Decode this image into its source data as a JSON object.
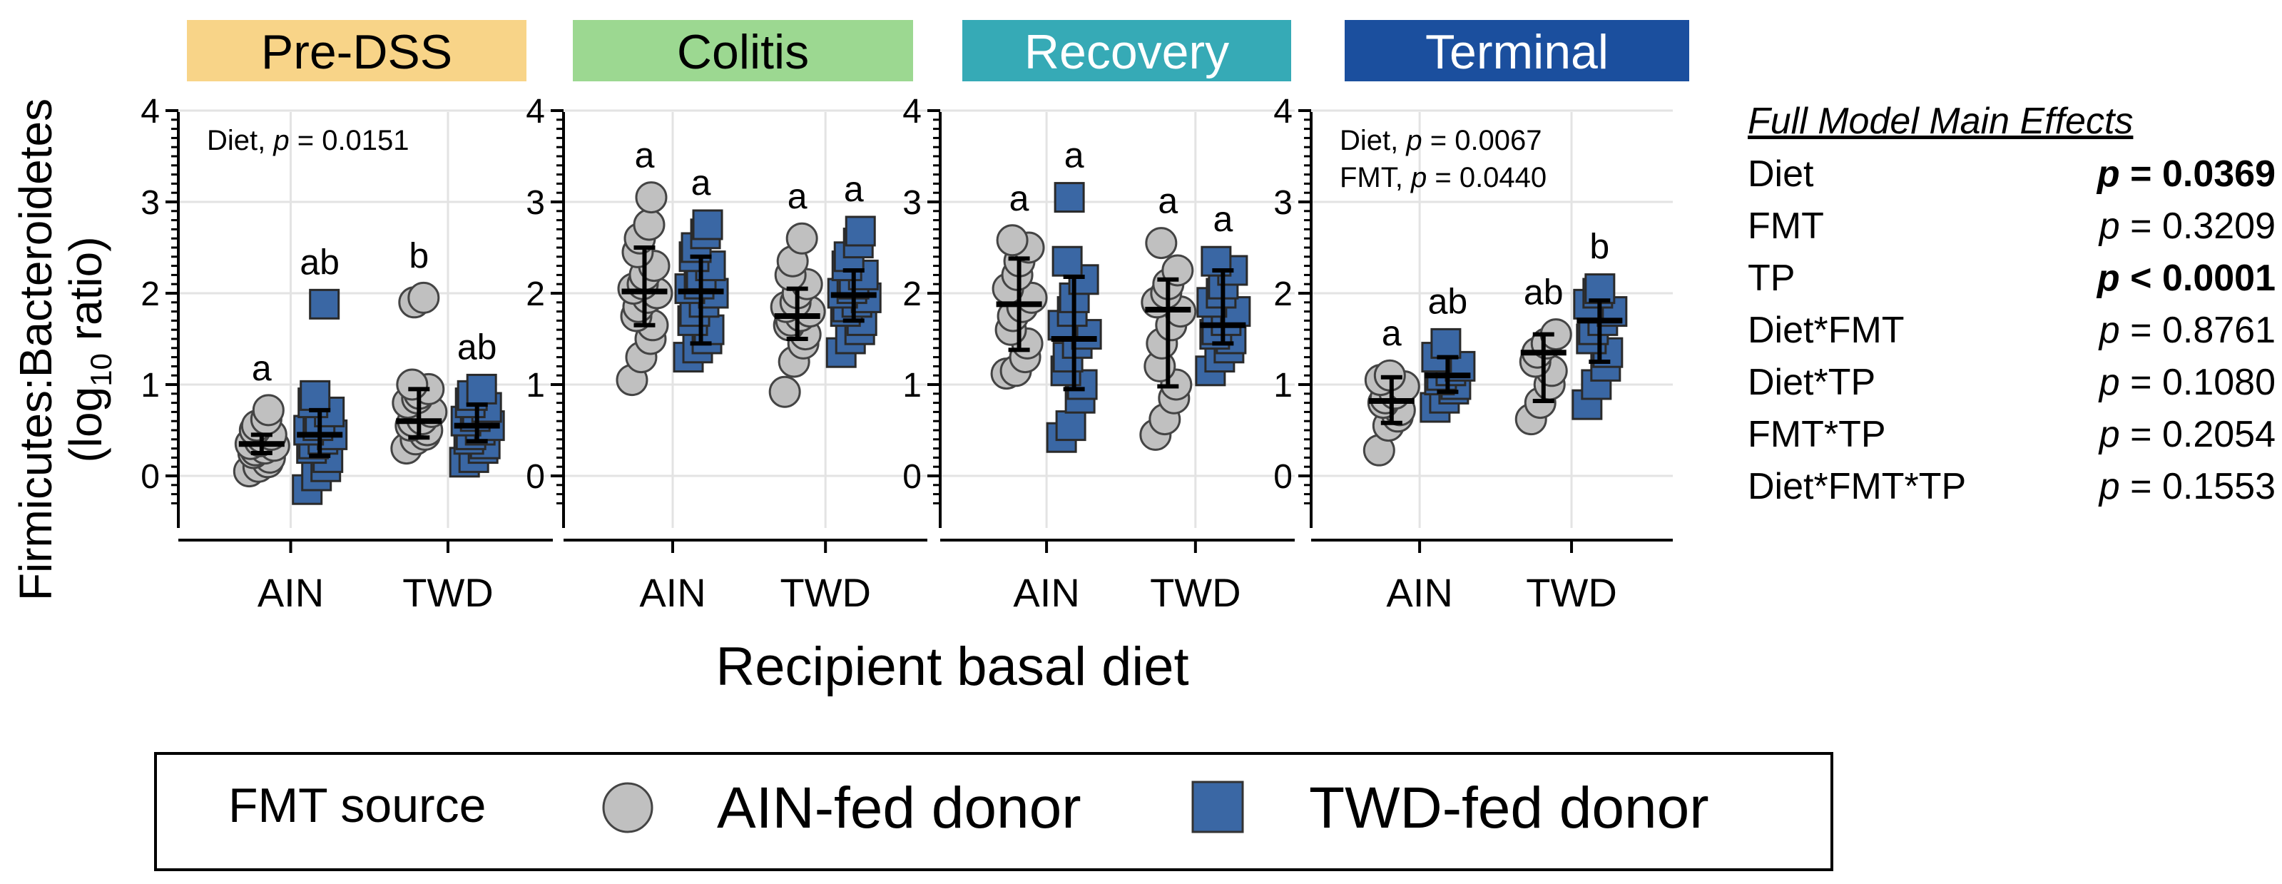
{
  "colors": {
    "ain_fill": "#c0c0c0",
    "twd_fill": "#3a67a4",
    "edge": "#444444",
    "grid": "#e3e3e3",
    "panel_bg": {
      "Pre-DSS": "#f8d488",
      "Colitis": "#9cd891",
      "Recovery": "#36aab6",
      "Terminal": "#1b4f9e"
    },
    "panel_text": {
      "Pre-DSS": "#000000",
      "Colitis": "#000000",
      "Recovery": "#ffffff",
      "Terminal": "#ffffff"
    }
  },
  "chart_data": {
    "type": "scatter",
    "ylabel_line1": "Firmicutes:Bacteroidetes",
    "ylabel_line2_pre": "(log",
    "ylabel_line2_sub": "10",
    "ylabel_line2_post": " ratio)",
    "xlabel": "Recipient basal diet",
    "ylim": [
      -0.35,
      4
    ],
    "yticks": [
      "0",
      "1",
      "2",
      "3",
      "4"
    ],
    "categories": [
      "AIN",
      "TWD"
    ],
    "legend": {
      "title": "FMT source",
      "ain_label": "AIN-fed donor",
      "twd_label": "TWD-fed donor"
    },
    "panels": [
      {
        "name": "Pre-DSS",
        "annotations": [
          {
            "label": "Diet",
            "p": "0.0151"
          }
        ],
        "groups": [
          {
            "diet": "AIN",
            "source": "AIN",
            "letter": "a",
            "median": 0.35,
            "lower": 0.25,
            "upper": 0.45,
            "points": [
              0.05,
              0.1,
              0.15,
              0.2,
              0.25,
              0.28,
              0.3,
              0.33,
              0.35,
              0.38,
              0.42,
              0.45,
              0.5,
              0.55,
              0.62,
              0.72
            ]
          },
          {
            "diet": "AIN",
            "source": "TWD",
            "letter": "ab",
            "median": 0.45,
            "lower": 0.22,
            "upper": 0.72,
            "points": [
              -0.15,
              0.0,
              0.1,
              0.2,
              0.3,
              0.35,
              0.4,
              0.45,
              0.5,
              0.55,
              0.62,
              0.7,
              0.8,
              0.88,
              1.88
            ]
          },
          {
            "diet": "TWD",
            "source": "AIN",
            "letter": "b",
            "median": 0.6,
            "lower": 0.42,
            "upper": 0.95,
            "points": [
              0.3,
              0.4,
              0.45,
              0.5,
              0.55,
              0.6,
              0.62,
              0.7,
              0.8,
              0.85,
              0.9,
              0.95,
              1.0,
              1.9,
              1.95
            ]
          },
          {
            "diet": "TWD",
            "source": "TWD",
            "letter": "ab",
            "median": 0.55,
            "lower": 0.38,
            "upper": 0.78,
            "points": [
              0.15,
              0.2,
              0.3,
              0.35,
              0.4,
              0.45,
              0.5,
              0.55,
              0.6,
              0.65,
              0.7,
              0.75,
              0.8,
              0.88,
              0.95
            ]
          }
        ]
      },
      {
        "name": "Colitis",
        "annotations": [],
        "groups": [
          {
            "diet": "AIN",
            "source": "AIN",
            "letter": "a",
            "median": 2.02,
            "lower": 1.65,
            "upper": 2.5,
            "points": [
              1.05,
              1.3,
              1.5,
              1.65,
              1.75,
              1.85,
              1.95,
              2.0,
              2.05,
              2.1,
              2.2,
              2.3,
              2.45,
              2.6,
              2.75,
              3.05
            ]
          },
          {
            "diet": "AIN",
            "source": "TWD",
            "letter": "a",
            "median": 2.02,
            "lower": 1.45,
            "upper": 2.4,
            "points": [
              1.3,
              1.4,
              1.5,
              1.6,
              1.7,
              1.8,
              1.9,
              2.0,
              2.05,
              2.1,
              2.2,
              2.3,
              2.4,
              2.5,
              2.65,
              2.75
            ]
          },
          {
            "diet": "TWD",
            "source": "AIN",
            "letter": "a",
            "median": 1.75,
            "lower": 1.5,
            "upper": 2.05,
            "points": [
              0.92,
              1.25,
              1.45,
              1.55,
              1.65,
              1.7,
              1.75,
              1.8,
              1.85,
              1.9,
              2.0,
              2.1,
              2.2,
              2.35,
              2.6
            ]
          },
          {
            "diet": "TWD",
            "source": "TWD",
            "letter": "a",
            "median": 1.98,
            "lower": 1.7,
            "upper": 2.25,
            "points": [
              1.35,
              1.5,
              1.6,
              1.7,
              1.8,
              1.85,
              1.9,
              1.95,
              2.0,
              2.05,
              2.1,
              2.2,
              2.3,
              2.4,
              2.55,
              2.68
            ]
          }
        ]
      },
      {
        "name": "Recovery",
        "annotations": [],
        "groups": [
          {
            "diet": "AIN",
            "source": "AIN",
            "letter": "a",
            "median": 1.88,
            "lower": 1.38,
            "upper": 2.38,
            "points": [
              1.12,
              1.15,
              1.3,
              1.45,
              1.6,
              1.75,
              1.85,
              1.95,
              2.05,
              2.2,
              2.35,
              2.5,
              2.58
            ]
          },
          {
            "diet": "AIN",
            "source": "TWD",
            "letter": "a",
            "median": 1.5,
            "lower": 0.95,
            "upper": 2.18,
            "points": [
              0.42,
              0.55,
              0.85,
              1.0,
              1.15,
              1.3,
              1.45,
              1.55,
              1.65,
              1.8,
              1.95,
              2.15,
              2.35,
              3.05
            ]
          },
          {
            "diet": "TWD",
            "source": "AIN",
            "letter": "a",
            "median": 1.82,
            "lower": 0.98,
            "upper": 2.15,
            "points": [
              0.45,
              0.62,
              0.85,
              1.0,
              1.2,
              1.45,
              1.65,
              1.8,
              1.9,
              2.0,
              2.1,
              2.25,
              2.55
            ]
          },
          {
            "diet": "TWD",
            "source": "TWD",
            "letter": "a",
            "median": 1.65,
            "lower": 1.45,
            "upper": 2.25,
            "points": [
              1.15,
              1.3,
              1.4,
              1.5,
              1.55,
              1.6,
              1.7,
              1.8,
              1.9,
              2.0,
              2.1,
              2.25,
              2.35
            ]
          }
        ]
      },
      {
        "name": "Terminal",
        "annotations": [
          {
            "label": "Diet",
            "p": "0.0067"
          },
          {
            "label": "FMT",
            "p": "0.0440"
          }
        ],
        "groups": [
          {
            "diet": "AIN",
            "source": "AIN",
            "letter": "a",
            "median": 0.82,
            "lower": 0.58,
            "upper": 1.08,
            "points": [
              0.28,
              0.55,
              0.65,
              0.72,
              0.8,
              0.85,
              0.9,
              0.98,
              1.05,
              1.1
            ]
          },
          {
            "diet": "AIN",
            "source": "TWD",
            "letter": "ab",
            "median": 1.1,
            "lower": 0.92,
            "upper": 1.3,
            "points": [
              0.75,
              0.85,
              0.95,
              1.0,
              1.05,
              1.1,
              1.15,
              1.2,
              1.3,
              1.45
            ]
          },
          {
            "diet": "TWD",
            "source": "AIN",
            "letter": "ab",
            "median": 1.35,
            "lower": 0.82,
            "upper": 1.55,
            "points": [
              0.62,
              0.8,
              1.0,
              1.15,
              1.25,
              1.35,
              1.45,
              1.55
            ]
          },
          {
            "diet": "TWD",
            "source": "TWD",
            "letter": "b",
            "median": 1.7,
            "lower": 1.25,
            "upper": 1.92,
            "points": [
              0.78,
              1.0,
              1.2,
              1.35,
              1.5,
              1.6,
              1.7,
              1.8,
              1.88,
              2.0,
              2.05
            ]
          }
        ]
      }
    ],
    "main_effects": {
      "title": "Full Model Main Effects",
      "rows": [
        {
          "term": "Diet",
          "p_rel": "=",
          "p": "0.0369",
          "bold": true
        },
        {
          "term": "FMT",
          "p_rel": "=",
          "p": "0.3209",
          "bold": false
        },
        {
          "term": "TP",
          "p_rel": "<",
          "p": "0.0001",
          "bold": true
        },
        {
          "term": "Diet*FMT",
          "p_rel": "=",
          "p": "0.8761",
          "bold": false
        },
        {
          "term": "Diet*TP",
          "p_rel": "=",
          "p": "0.1080",
          "bold": false
        },
        {
          "term": "FMT*TP",
          "p_rel": "=",
          "p": "0.2054",
          "bold": false
        },
        {
          "term": "Diet*FMT*TP",
          "p_rel": "=",
          "p": "0.1553",
          "bold": false
        }
      ]
    }
  }
}
